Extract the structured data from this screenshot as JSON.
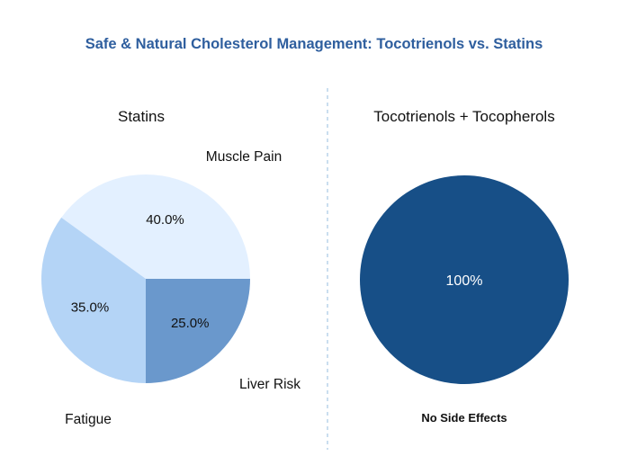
{
  "page": {
    "title": "Safe & Natural Cholesterol Management: Tocotrienols vs. Statins",
    "title_color": "#2E5E9E"
  },
  "chart_data": [
    {
      "type": "pie",
      "title": "Statins",
      "categories": [
        "Muscle Pain",
        "Liver Risk",
        "Fatigue"
      ],
      "values": [
        40.0,
        25.0,
        35.0
      ],
      "value_labels": [
        "40.0%",
        "25.0%",
        "35.0%"
      ],
      "colors": [
        "#E3F0FF",
        "#6A98CC",
        "#B4D4F6"
      ],
      "start_angle_deg": 0,
      "direction": "clockwise"
    },
    {
      "type": "pie",
      "title": "Tocotrienols + Tocopherols",
      "categories": [
        "No Side Effects"
      ],
      "values": [
        100
      ],
      "value_labels": [
        "100%"
      ],
      "colors": [
        "#174F87"
      ]
    }
  ],
  "divider": {
    "style": "dashed",
    "color": "#B9D3EA"
  }
}
